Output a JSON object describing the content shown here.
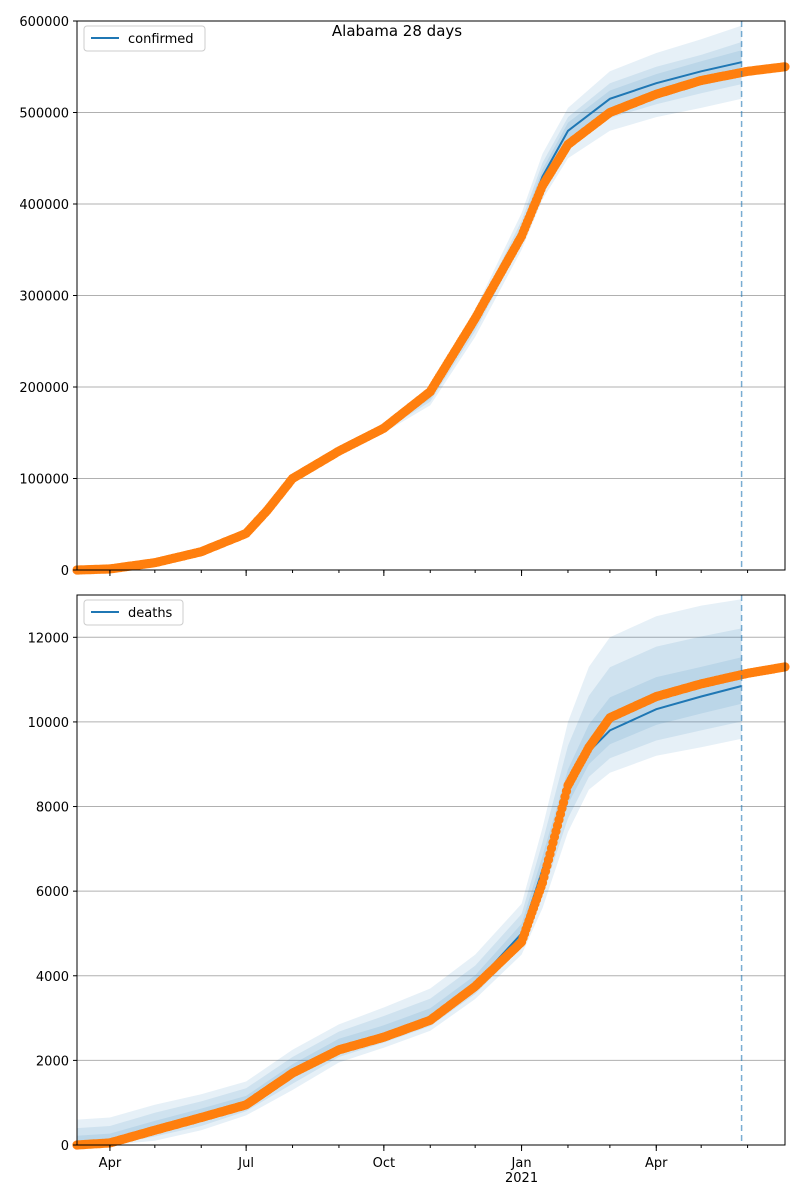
{
  "title": "Alabama 28 days",
  "colors": {
    "model_line": "#1f77b4",
    "observed": "#ff7f0e",
    "band": "#1f77b4",
    "grid": "#b0b0b0",
    "forecast_marker": "#1f77b4"
  },
  "x_axis": {
    "range": [
      "2020-03-10",
      "2021-06-26"
    ],
    "month_labels": [
      {
        "date": "2020-04-01",
        "label": "Apr",
        "sub": ""
      },
      {
        "date": "2020-07-01",
        "label": "Jul",
        "sub": ""
      },
      {
        "date": "2020-10-01",
        "label": "Oct",
        "sub": ""
      },
      {
        "date": "2021-01-01",
        "label": "Jan",
        "sub": "2021"
      },
      {
        "date": "2021-04-01",
        "label": "Apr",
        "sub": ""
      }
    ],
    "forecast_start": "2021-05-28"
  },
  "chart_data": [
    {
      "type": "line",
      "legend": "confirmed",
      "legend_position": "top-left",
      "grid": "horizontal",
      "ylim": [
        0,
        600000
      ],
      "yticks": [
        "0",
        "100000",
        "200000",
        "300000",
        "400000",
        "500000",
        "600000"
      ],
      "observed": {
        "dates": [
          "2020-03-10",
          "2020-04-01",
          "2020-05-01",
          "2020-06-01",
          "2020-07-01",
          "2020-07-15",
          "2020-08-01",
          "2020-09-01",
          "2020-10-01",
          "2020-11-01",
          "2020-12-01",
          "2021-01-01",
          "2021-01-15",
          "2021-02-01",
          "2021-03-01",
          "2021-04-01",
          "2021-05-01",
          "2021-06-01",
          "2021-06-26"
        ],
        "values": [
          0,
          1200,
          8000,
          20000,
          40000,
          65000,
          100000,
          130000,
          155000,
          195000,
          275000,
          365000,
          420000,
          465000,
          500000,
          520000,
          535000,
          545000,
          550000
        ]
      },
      "model": {
        "dates": [
          "2020-10-01",
          "2020-11-01",
          "2020-12-01",
          "2021-01-01",
          "2021-01-15",
          "2021-02-01",
          "2021-03-01",
          "2021-04-01",
          "2021-05-01",
          "2021-05-28"
        ],
        "median": [
          155000,
          190000,
          270000,
          370000,
          430000,
          480000,
          515000,
          532000,
          545000,
          555000
        ],
        "bands": [
          {
            "lower": [
              150000,
              180000,
              255000,
              350000,
              405000,
              450000,
              480000,
              495000,
              505000,
              515000
            ],
            "upper": [
              160000,
              200000,
              285000,
              390000,
              455000,
              505000,
              545000,
              565000,
              580000,
              595000
            ]
          },
          {
            "lower": [
              152000,
              184000,
              261000,
              358000,
              415000,
              462000,
              494000,
              509000,
              521000,
              531000
            ],
            "upper": [
              158000,
              196000,
              279000,
              382000,
              445000,
              495000,
              532000,
              550000,
              563000,
              577000
            ]
          },
          {
            "lower": [
              153500,
              187000,
              265000,
              364000,
              422000,
              471000,
              505000,
              521000,
              533000,
              543000
            ],
            "upper": [
              156500,
              193000,
              275000,
              376000,
              438000,
              489000,
              524000,
              542000,
              556000,
              568000
            ]
          }
        ]
      }
    },
    {
      "type": "line",
      "legend": "deaths",
      "legend_position": "top-left",
      "grid": "horizontal",
      "ylim": [
        0,
        13000
      ],
      "yticks": [
        "0",
        "2000",
        "4000",
        "6000",
        "8000",
        "10000",
        "12000"
      ],
      "observed": {
        "dates": [
          "2020-03-10",
          "2020-04-01",
          "2020-05-01",
          "2020-06-01",
          "2020-07-01",
          "2020-08-01",
          "2020-09-01",
          "2020-10-01",
          "2020-11-01",
          "2020-12-01",
          "2021-01-01",
          "2021-01-15",
          "2021-02-01",
          "2021-02-15",
          "2021-03-01",
          "2021-04-01",
          "2021-05-01",
          "2021-06-01",
          "2021-06-26"
        ],
        "values": [
          0,
          50,
          350,
          650,
          950,
          1700,
          2250,
          2550,
          2950,
          3750,
          4800,
          6200,
          8500,
          9400,
          10100,
          10600,
          10900,
          11150,
          11300
        ]
      },
      "model": {
        "dates": [
          "2020-03-10",
          "2020-04-01",
          "2020-05-01",
          "2020-06-01",
          "2020-07-01",
          "2020-08-01",
          "2020-09-01",
          "2020-10-01",
          "2020-11-01",
          "2020-12-01",
          "2021-01-01",
          "2021-01-15",
          "2021-02-01",
          "2021-02-15",
          "2021-03-01",
          "2021-04-01",
          "2021-05-01",
          "2021-05-28"
        ],
        "median": [
          20,
          60,
          380,
          680,
          980,
          1750,
          2300,
          2620,
          3000,
          3800,
          5000,
          6500,
          8400,
          9300,
          9800,
          10300,
          10600,
          10850
        ],
        "bands": [
          {
            "lower": [
              0,
              0,
              100,
              350,
              700,
              1300,
              1950,
              2300,
              2700,
              3450,
              4500,
              5600,
              7400,
              8400,
              8800,
              9200,
              9400,
              9600
            ],
            "upper": [
              600,
              650,
              950,
              1200,
              1500,
              2250,
              2850,
              3250,
              3700,
              4500,
              5700,
              7500,
              10000,
              11300,
              12000,
              12500,
              12750,
              12900
            ]
          },
          {
            "lower": [
              0,
              0,
              200,
              450,
              800,
              1450,
              2080,
              2420,
              2810,
              3570,
              4670,
              5900,
              7720,
              8700,
              9140,
              9560,
              9800,
              10010
            ],
            "upper": [
              400,
              450,
              760,
              1030,
              1340,
              2080,
              2680,
              3050,
              3460,
              4240,
              5460,
              7160,
              9440,
              10620,
              11290,
              11780,
              12020,
              12210
            ]
          },
          {
            "lower": [
              0,
              10,
              290,
              560,
              890,
              1600,
              2190,
              2520,
              2900,
              3680,
              4830,
              6200,
              8060,
              9000,
              9470,
              9930,
              10200,
              10430
            ],
            "upper": [
              220,
              270,
              570,
              860,
              1160,
              1910,
              2510,
              2830,
              3230,
              4010,
              5230,
              6830,
              8880,
              9940,
              10580,
              11060,
              11300,
              11530
            ]
          }
        ]
      }
    }
  ]
}
